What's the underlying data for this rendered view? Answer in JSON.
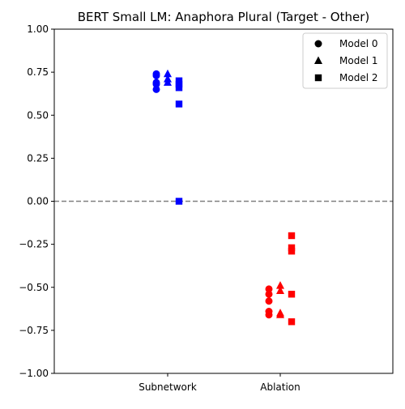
{
  "chart_data": {
    "type": "scatter",
    "title": "BERT Small LM: Anaphora Plural (Target - Other)",
    "xlabel": "",
    "ylabel": "",
    "categories": [
      "Subnetwork",
      "Ablation"
    ],
    "ylim": [
      -1.0,
      1.0
    ],
    "yticks": [
      -1.0,
      -0.75,
      -0.5,
      -0.25,
      0.0,
      0.25,
      0.5,
      0.75,
      1.0
    ],
    "ytick_labels": [
      "−1.00",
      "−0.75",
      "−0.50",
      "−0.25",
      "0.00",
      "0.25",
      "0.50",
      "0.75",
      "1.00"
    ],
    "grid": false,
    "reference_line": {
      "y": 0.0,
      "style": "dashed",
      "color": "#808080"
    },
    "legend": {
      "placement": "top-right",
      "entries": [
        {
          "label": "Model 0",
          "marker": "circle"
        },
        {
          "label": "Model 1",
          "marker": "triangle"
        },
        {
          "label": "Model 2",
          "marker": "square"
        }
      ]
    },
    "category_colors": {
      "Subnetwork": "#0000ff",
      "Ablation": "#ff0000"
    },
    "series": [
      {
        "name": "Model 0",
        "marker": "circle",
        "points": [
          {
            "category": "Subnetwork",
            "y": 0.74
          },
          {
            "category": "Subnetwork",
            "y": 0.73
          },
          {
            "category": "Subnetwork",
            "y": 0.69
          },
          {
            "category": "Subnetwork",
            "y": 0.68
          },
          {
            "category": "Subnetwork",
            "y": 0.65
          },
          {
            "category": "Ablation",
            "y": -0.51
          },
          {
            "category": "Ablation",
            "y": -0.54
          },
          {
            "category": "Ablation",
            "y": -0.58
          },
          {
            "category": "Ablation",
            "y": -0.64
          },
          {
            "category": "Ablation",
            "y": -0.66
          }
        ]
      },
      {
        "name": "Model 1",
        "marker": "triangle",
        "points": [
          {
            "category": "Subnetwork",
            "y": 0.74
          },
          {
            "category": "Subnetwork",
            "y": 0.71
          },
          {
            "category": "Subnetwork",
            "y": 0.69
          },
          {
            "category": "Ablation",
            "y": -0.49
          },
          {
            "category": "Ablation",
            "y": -0.52
          },
          {
            "category": "Ablation",
            "y": -0.65
          },
          {
            "category": "Ablation",
            "y": -0.66
          }
        ]
      },
      {
        "name": "Model 2",
        "marker": "square",
        "points": [
          {
            "category": "Subnetwork",
            "y": 0.7
          },
          {
            "category": "Subnetwork",
            "y": 0.68
          },
          {
            "category": "Subnetwork",
            "y": 0.66
          },
          {
            "category": "Subnetwork",
            "y": 0.565
          },
          {
            "category": "Subnetwork",
            "y": 0.0
          },
          {
            "category": "Ablation",
            "y": -0.2
          },
          {
            "category": "Ablation",
            "y": -0.27
          },
          {
            "category": "Ablation",
            "y": -0.29
          },
          {
            "category": "Ablation",
            "y": -0.54
          },
          {
            "category": "Ablation",
            "y": -0.7
          }
        ]
      }
    ]
  }
}
